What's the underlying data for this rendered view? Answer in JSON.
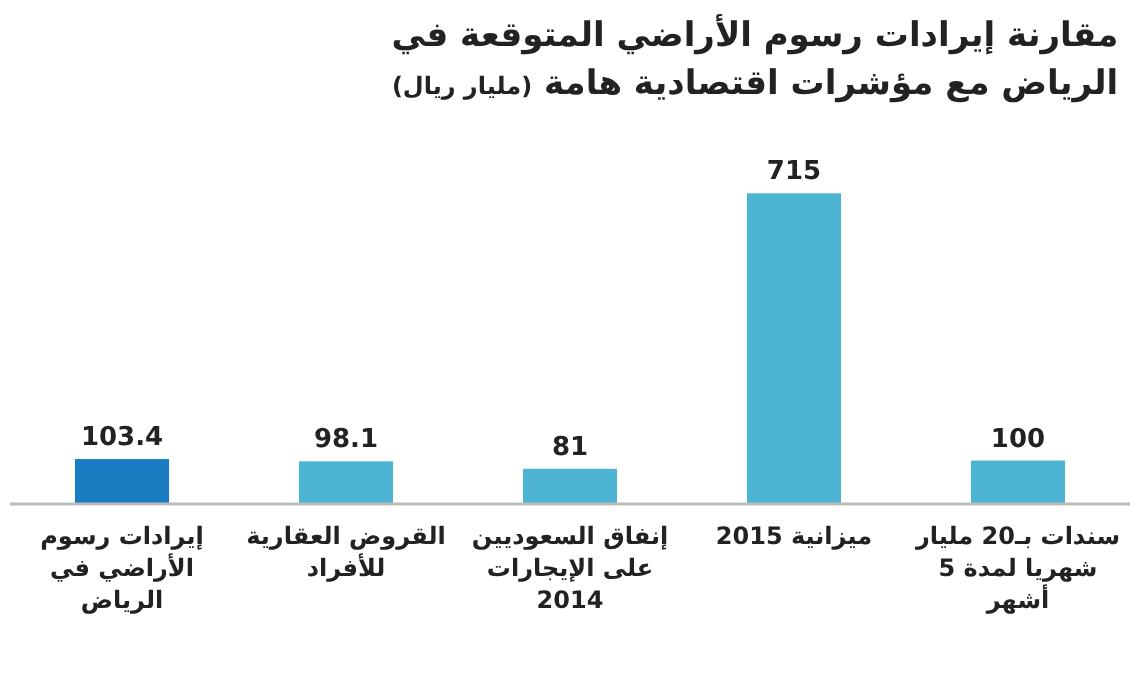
{
  "chart_data": {
    "type": "bar",
    "title": "مقارنة إيرادات رسوم الأراضي المتوقعة في الرياض مع مؤشرات اقتصادية هامة",
    "subtitle": "(مليار ريال)",
    "categories": [
      "إيرادات رسوم الأراضي في الرياض",
      "القروض العقارية للأفراد",
      "إنفاق السعوديين على الإيجارات 2014",
      "ميزانية 2015",
      "سندات بـ20 مليار شهريا لمدة 5 أشهر"
    ],
    "values": [
      103.4,
      98.1,
      81,
      715,
      100
    ],
    "colors": [
      "#1a7cc1",
      "#4cb4d2",
      "#4cb4d2",
      "#4cb4d2",
      "#4cb4d2"
    ],
    "data_labels": true
  }
}
